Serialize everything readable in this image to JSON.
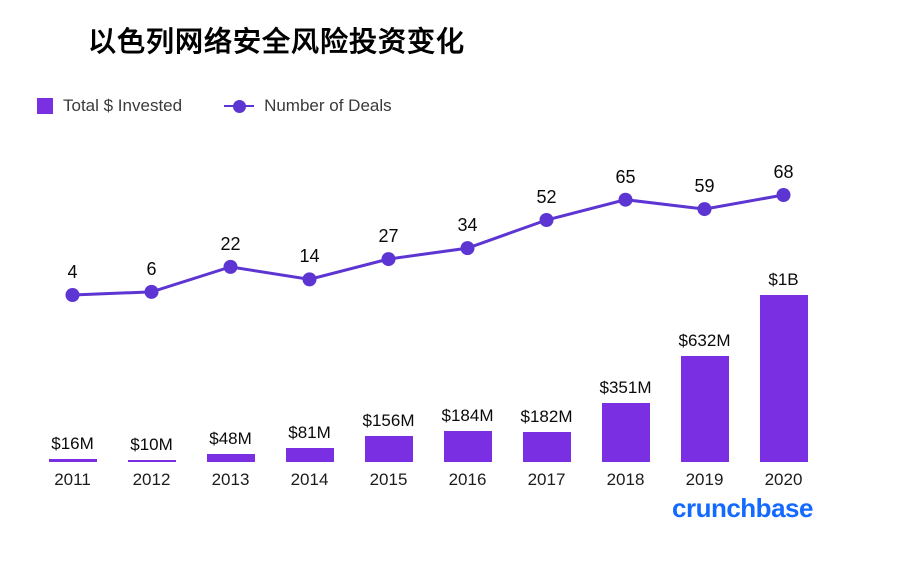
{
  "title": "以色列网络安全风险投资变化",
  "legend": {
    "invested": "Total $ Invested",
    "deals": "Number of Deals"
  },
  "footer": {
    "logo": "crunchbase"
  },
  "colors": {
    "bar": "#7b2fe2",
    "line": "#5c35d2",
    "logo": "#146aff",
    "text": "#0a0a0a"
  },
  "chart_data": {
    "type": "bar+line",
    "title": "以色列网络安全风险投资变化",
    "categories": [
      "2011",
      "2012",
      "2013",
      "2014",
      "2015",
      "2016",
      "2017",
      "2018",
      "2019",
      "2020"
    ],
    "series": [
      {
        "name": "Total $ Invested",
        "type": "bar",
        "unit": "USD",
        "values_millions": [
          16,
          10,
          48,
          81,
          156,
          184,
          182,
          351,
          632,
          1000
        ],
        "labels": [
          "$16M",
          "$10M",
          "$48M",
          "$81M",
          "$156M",
          "$184M",
          "$182M",
          "$351M",
          "$632M",
          "$1B"
        ]
      },
      {
        "name": "Number of Deals",
        "type": "line",
        "values": [
          4,
          6,
          22,
          14,
          27,
          34,
          52,
          65,
          59,
          68
        ]
      }
    ],
    "bar_axis_max_millions": 1000,
    "grid": false,
    "legend_position": "top-left",
    "source_logo": "crunchbase"
  }
}
